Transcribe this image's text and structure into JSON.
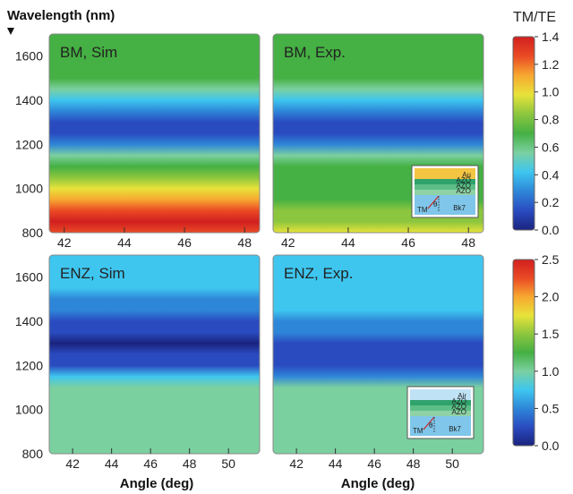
{
  "figure": {
    "y_axis_title": "Wavelength (nm)",
    "colorbar_title": "TM/TE",
    "x_axis_title": "Angle (deg)"
  },
  "colors": {
    "jet": [
      "#1a237e",
      "#2a4bc0",
      "#2e86d8",
      "#3ec6ef",
      "#7bd0a0",
      "#45b043",
      "#8cc63e",
      "#e8e33a",
      "#f7a830",
      "#ea4a25",
      "#d11f1f"
    ]
  },
  "insets": {
    "top": {
      "layers": [
        "Au",
        "AZO",
        "AZO",
        "AZO"
      ],
      "substrate": "Bk7",
      "labels": [
        "TM",
        "θ"
      ]
    },
    "bottom": {
      "layers": [
        "Air",
        "AZO",
        "AZO",
        "AZO"
      ],
      "substrate": "Bk7",
      "labels": [
        "TM",
        "θ"
      ]
    }
  },
  "chart_data": [
    {
      "type": "heatmap",
      "title": "BM, Sim",
      "xlabel": "",
      "ylabel": "Wavelength (nm)",
      "x_ticks": [
        "42",
        "44",
        "46",
        "48"
      ],
      "y_ticks": [
        "800",
        "1000",
        "1200",
        "1400",
        "1600"
      ],
      "xlim": [
        41.5,
        48.5
      ],
      "ylim": [
        800,
        1700
      ],
      "colorbar": "top",
      "profile": {
        "wavelength": [
          800,
          850,
          900,
          950,
          1000,
          1050,
          1100,
          1150,
          1200,
          1250,
          1300,
          1350,
          1400,
          1450,
          1500,
          1550,
          1600,
          1650,
          1700
        ],
        "ratio": [
          1.3,
          1.35,
          1.3,
          1.1,
          1.0,
          0.85,
          0.7,
          0.55,
          0.3,
          0.15,
          0.15,
          0.25,
          0.45,
          0.6,
          0.65,
          0.68,
          0.7,
          0.7,
          0.7
        ]
      }
    },
    {
      "type": "heatmap",
      "title": "BM, Exp.",
      "xlabel": "",
      "ylabel": "",
      "x_ticks": [
        "42",
        "44",
        "46",
        "48"
      ],
      "y_ticks": [
        "800",
        "1000",
        "1200",
        "1400",
        "1600"
      ],
      "xlim": [
        41.5,
        48.5
      ],
      "ylim": [
        800,
        1700
      ],
      "colorbar": "top",
      "profile": {
        "wavelength": [
          800,
          850,
          900,
          950,
          1000,
          1050,
          1100,
          1150,
          1200,
          1250,
          1300,
          1350,
          1400,
          1450,
          1500,
          1550,
          1600,
          1650,
          1700
        ],
        "ratio": [
          0.95,
          0.9,
          0.8,
          0.75,
          0.75,
          0.75,
          0.7,
          0.6,
          0.25,
          0.15,
          0.15,
          0.25,
          0.45,
          0.6,
          0.65,
          0.68,
          0.7,
          0.7,
          0.7
        ]
      }
    },
    {
      "type": "heatmap",
      "title": "ENZ, Sim",
      "xlabel": "Angle (deg)",
      "ylabel": "",
      "x_ticks": [
        "42",
        "44",
        "46",
        "48",
        "50"
      ],
      "y_ticks": [
        "800",
        "1000",
        "1200",
        "1400",
        "1600"
      ],
      "xlim": [
        40.8,
        51.6
      ],
      "ylim": [
        800,
        1700
      ],
      "colorbar": "bottom",
      "profile": {
        "wavelength": [
          800,
          850,
          900,
          950,
          1000,
          1050,
          1100,
          1150,
          1200,
          1250,
          1300,
          1350,
          1400,
          1450,
          1500,
          1550,
          1600,
          1650,
          1700
        ],
        "ratio": [
          1.0,
          1.0,
          1.0,
          1.0,
          1.0,
          1.0,
          1.0,
          0.7,
          0.3,
          0.15,
          0.1,
          0.2,
          0.35,
          0.5,
          0.6,
          0.65,
          0.7,
          0.7,
          0.72
        ]
      }
    },
    {
      "type": "heatmap",
      "title": "ENZ, Exp.",
      "xlabel": "Angle (deg)",
      "ylabel": "",
      "x_ticks": [
        "42",
        "44",
        "46",
        "48",
        "50"
      ],
      "y_ticks": [
        "800",
        "1000",
        "1200",
        "1400",
        "1600"
      ],
      "xlim": [
        40.8,
        51.6
      ],
      "ylim": [
        800,
        1700
      ],
      "colorbar": "bottom",
      "profile": {
        "wavelength": [
          800,
          850,
          900,
          950,
          1000,
          1050,
          1100,
          1150,
          1200,
          1250,
          1300,
          1350,
          1400,
          1450,
          1500,
          1550,
          1600,
          1650,
          1700
        ],
        "ratio": [
          1.0,
          1.0,
          1.0,
          1.0,
          1.0,
          1.0,
          0.9,
          0.5,
          0.2,
          0.15,
          0.25,
          0.4,
          0.55,
          0.65,
          0.7,
          0.7,
          0.72,
          0.75,
          0.75
        ]
      }
    },
    {
      "type": "colorbar",
      "title": "TM/TE",
      "ticks": [
        "0.0",
        "0.2",
        "0.4",
        "0.6",
        "0.8",
        "1.0",
        "1.2",
        "1.4"
      ],
      "range": [
        0.0,
        1.4
      ]
    },
    {
      "type": "colorbar",
      "title": "",
      "ticks": [
        "0.0",
        "0.5",
        "1.0",
        "1.5",
        "2.0",
        "2.5"
      ],
      "range": [
        0.0,
        2.5
      ]
    }
  ]
}
